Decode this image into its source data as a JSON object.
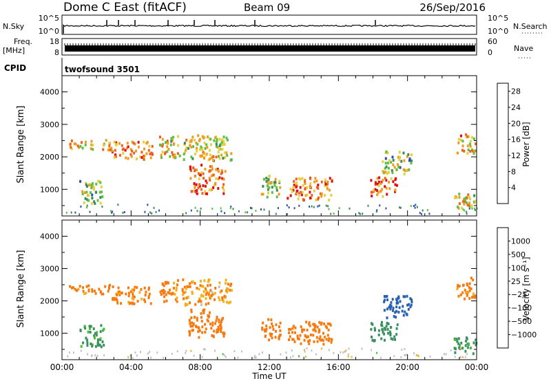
{
  "header": {
    "station": "Dome C East (fitACF)",
    "beam": "Beam 09",
    "date": "26/Sep/2016"
  },
  "strips": {
    "nsky_label": "N.Sky",
    "nsky_ticks": [
      "10^5",
      "10^0"
    ],
    "nsearch_label": "N.Search",
    "nsearch_ticks": [
      "10^5",
      "10^0"
    ],
    "freq_label": "Freq.",
    "freq_unit": "[MHz]",
    "freq_ticks": [
      "18",
      "8"
    ],
    "nave_label": "Nave",
    "nave_ticks": [
      "60",
      "0"
    ],
    "cpid_label": "CPID",
    "cpid_value": "twofsound 3501"
  },
  "colors": {
    "power": [
      "#1a1aff",
      "#2a50a8",
      "#3a8a5a",
      "#5cc040",
      "#e6d040",
      "#f09a20",
      "#ee6020",
      "#dd1010"
    ],
    "velocity": [
      "#e00000",
      "#f03a10",
      "#f77a10",
      "#f5b020",
      "#c0c0c0",
      "#40c030",
      "#3a9060",
      "#2a60b0",
      "#1a2aa0"
    ]
  },
  "chart_data": [
    {
      "type": "heatmap",
      "panel": "power",
      "ylabel": "Slant Range [km]",
      "xlim": [
        "00:00",
        "24:00"
      ],
      "ylim": [
        180,
        4500
      ],
      "yticks": [
        "1000",
        "2000",
        "3000",
        "4000"
      ],
      "colorbar": {
        "label": "Power [dB]",
        "ticks": [
          "4",
          "8",
          "12",
          "16",
          "20",
          "24",
          "28"
        ],
        "range": [
          0,
          30
        ]
      },
      "regions": [
        {
          "t": [
            0.4,
            2.8
          ],
          "range": [
            2250,
            2550
          ],
          "value": 20
        },
        {
          "t": [
            1.0,
            2.4
          ],
          "range": [
            600,
            1300
          ],
          "value": 13
        },
        {
          "t": [
            2.8,
            5.2
          ],
          "range": [
            1950,
            2500
          ],
          "value": 22
        },
        {
          "t": [
            5.6,
            6.8
          ],
          "range": [
            2000,
            2700
          ],
          "value": 17
        },
        {
          "t": [
            6.9,
            9.8
          ],
          "range": [
            1900,
            2700
          ],
          "value": 17
        },
        {
          "t": [
            7.3,
            9.4
          ],
          "range": [
            900,
            1800
          ],
          "value": 24
        },
        {
          "t": [
            11.5,
            12.6
          ],
          "range": [
            800,
            1500
          ],
          "value": 15
        },
        {
          "t": [
            13.0,
            15.6
          ],
          "range": [
            700,
            1400
          ],
          "value": 22
        },
        {
          "t": [
            17.8,
            19.4
          ],
          "range": [
            800,
            1400
          ],
          "value": 25
        },
        {
          "t": [
            18.5,
            20.2
          ],
          "range": [
            1500,
            2200
          ],
          "value": 14
        },
        {
          "t": [
            22.8,
            23.9
          ],
          "range": [
            2100,
            2750
          ],
          "value": 20
        },
        {
          "t": [
            22.6,
            24.0
          ],
          "range": [
            400,
            900
          ],
          "value": 18
        }
      ]
    },
    {
      "type": "heatmap",
      "panel": "velocity",
      "xlabel": "Time UT",
      "ylabel": "Slant Range [km]",
      "xlim": [
        "00:00",
        "24:00"
      ],
      "ylim": [
        180,
        4500
      ],
      "xticks": [
        "00:00",
        "04:00",
        "08:00",
        "12:00",
        "16:00",
        "20:00",
        "00:00"
      ],
      "yticks": [
        "1000",
        "2000",
        "3000",
        "4000"
      ],
      "colorbar": {
        "label": "Velocity [m s⁻¹]",
        "ticks": [
          "1000",
          "500",
          "100",
          "25",
          "−25",
          "−100",
          "−500",
          "−1000"
        ]
      },
      "regions": [
        {
          "t": [
            0.4,
            2.8
          ],
          "range": [
            2250,
            2550
          ],
          "value": -150
        },
        {
          "t": [
            1.0,
            2.4
          ],
          "range": [
            600,
            1300
          ],
          "value": 150
        },
        {
          "t": [
            2.8,
            5.2
          ],
          "range": [
            1950,
            2500
          ],
          "value": -150
        },
        {
          "t": [
            5.6,
            6.8
          ],
          "range": [
            2000,
            2700
          ],
          "value": -150
        },
        {
          "t": [
            6.9,
            9.8
          ],
          "range": [
            1900,
            2700
          ],
          "value": -100
        },
        {
          "t": [
            7.3,
            9.4
          ],
          "range": [
            900,
            1800
          ],
          "value": -400
        },
        {
          "t": [
            11.5,
            12.6
          ],
          "range": [
            800,
            1500
          ],
          "value": -200
        },
        {
          "t": [
            13.0,
            15.6
          ],
          "range": [
            700,
            1400
          ],
          "value": -200
        },
        {
          "t": [
            17.8,
            19.4
          ],
          "range": [
            800,
            1400
          ],
          "value": 200
        },
        {
          "t": [
            18.5,
            20.2
          ],
          "range": [
            1500,
            2200
          ],
          "value": 600
        },
        {
          "t": [
            22.8,
            23.9
          ],
          "range": [
            2100,
            2750
          ],
          "value": -150
        },
        {
          "t": [
            22.6,
            24.0
          ],
          "range": [
            400,
            900
          ],
          "value": 150
        }
      ]
    }
  ]
}
